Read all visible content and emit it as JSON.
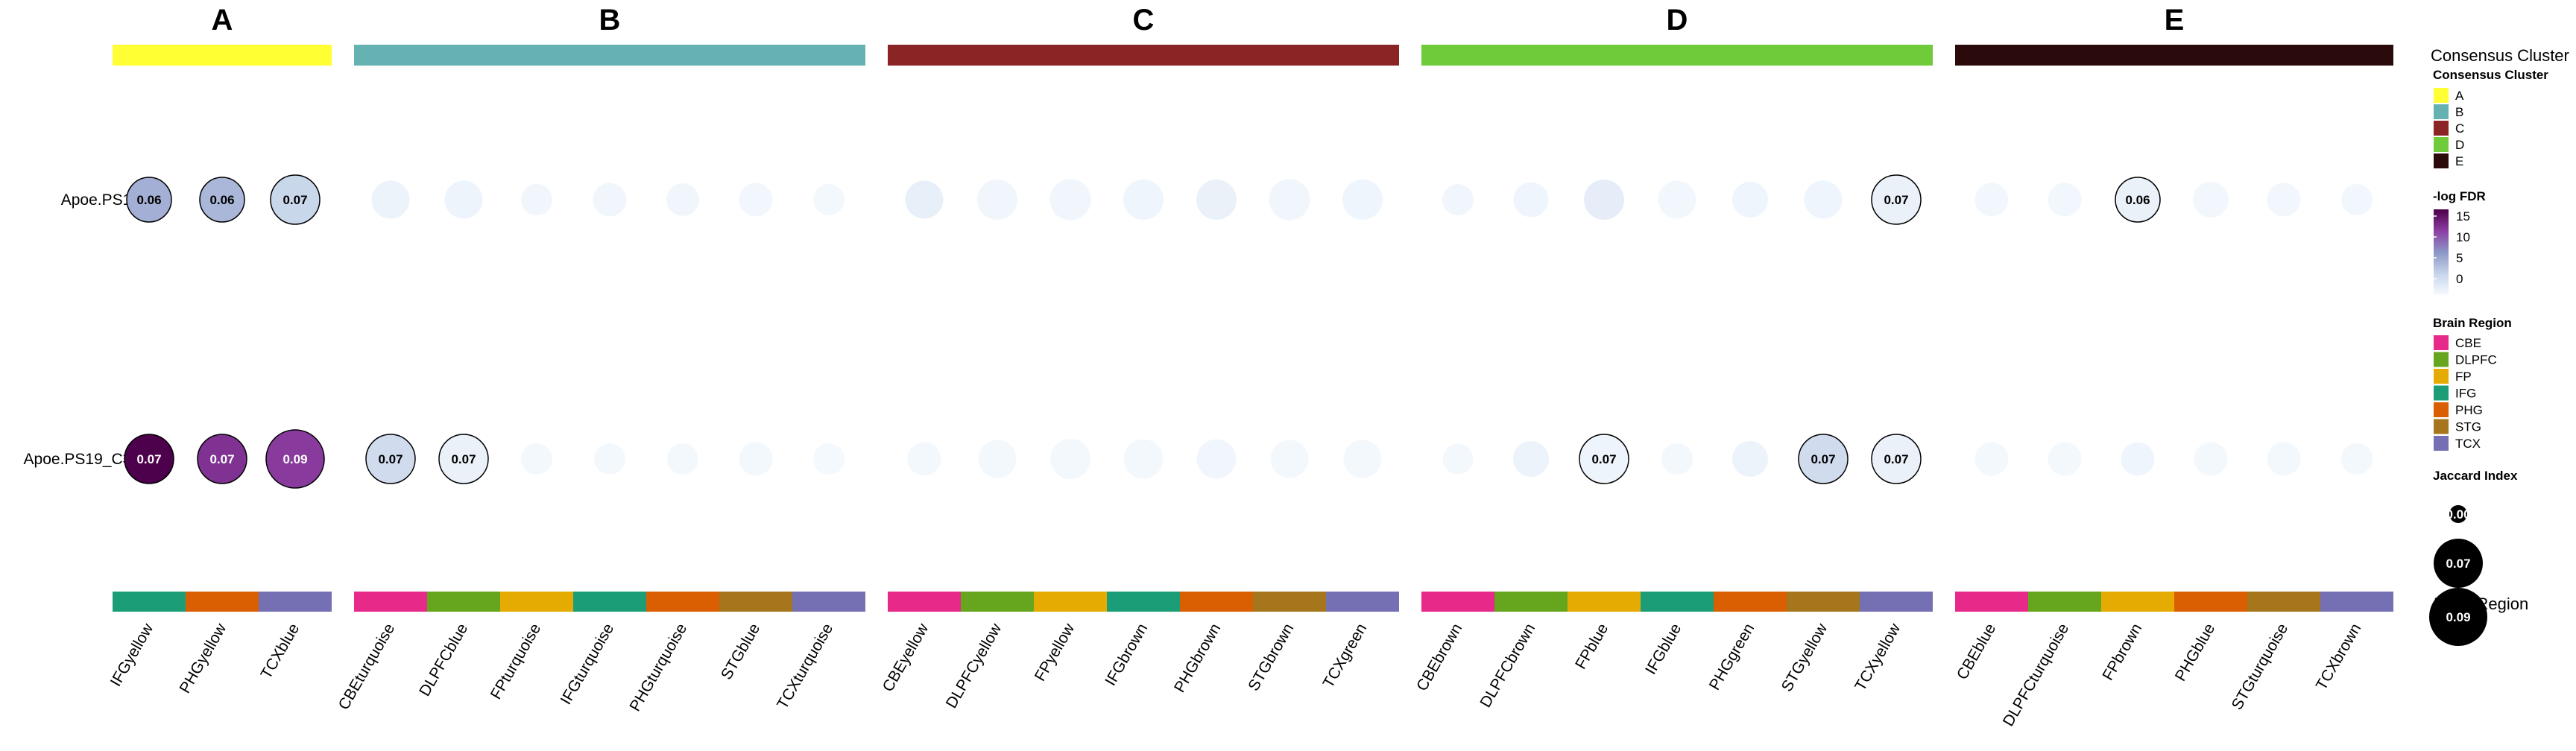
{
  "chart_data": {
    "type": "bubble-heatmap",
    "rows": [
      "Apoe.PS19",
      "Apoe.PS19_C31"
    ],
    "clusters": [
      {
        "name": "A",
        "color": "#FFFF33",
        "columns": [
          {
            "label": "IFGyellow",
            "region": "IFG"
          },
          {
            "label": "PHGyellow",
            "region": "PHG"
          },
          {
            "label": "TCXblue",
            "region": "TCX"
          }
        ]
      },
      {
        "name": "B",
        "color": "#66B2B2",
        "columns": [
          {
            "label": "CBEturquoise",
            "region": "CBE"
          },
          {
            "label": "DLPFCblue",
            "region": "DLPFC"
          },
          {
            "label": "FPturquoise",
            "region": "FP"
          },
          {
            "label": "IFGturquoise",
            "region": "IFG"
          },
          {
            "label": "PHGturquoise",
            "region": "PHG"
          },
          {
            "label": "STGblue",
            "region": "STG"
          },
          {
            "label": "TCXturquoise",
            "region": "TCX"
          }
        ]
      },
      {
        "name": "C",
        "color": "#8B2525",
        "columns": [
          {
            "label": "CBEyellow",
            "region": "CBE"
          },
          {
            "label": "DLPFCyellow",
            "region": "DLPFC"
          },
          {
            "label": "FPyellow",
            "region": "FP"
          },
          {
            "label": "IFGbrown",
            "region": "IFG"
          },
          {
            "label": "PHGbrown",
            "region": "PHG"
          },
          {
            "label": "STGbrown",
            "region": "STG"
          },
          {
            "label": "TCXgreen",
            "region": "TCX"
          }
        ]
      },
      {
        "name": "D",
        "color": "#6FCB3A",
        "columns": [
          {
            "label": "CBEbrown",
            "region": "CBE"
          },
          {
            "label": "DLPFCbrown",
            "region": "DLPFC"
          },
          {
            "label": "FPblue",
            "region": "FP"
          },
          {
            "label": "IFGblue",
            "region": "IFG"
          },
          {
            "label": "PHGgreen",
            "region": "PHG"
          },
          {
            "label": "STGyellow",
            "region": "STG"
          },
          {
            "label": "TCXyellow",
            "region": "TCX"
          }
        ]
      },
      {
        "name": "E",
        "color": "#2B0A0C",
        "columns": [
          {
            "label": "CBEblue",
            "region": "CBE"
          },
          {
            "label": "DLPFCturquoise",
            "region": "DLPFC"
          },
          {
            "label": "FPbrown",
            "region": "FP"
          },
          {
            "label": "PHGblue",
            "region": "PHG"
          },
          {
            "label": "STGturquoise",
            "region": "STG"
          },
          {
            "label": "TCXbrown",
            "region": "TCX"
          }
        ]
      }
    ],
    "cells": [
      [
        {
          "jaccard": 0.06,
          "neglogfdr": 6.0,
          "label": "0.06"
        },
        {
          "jaccard": 0.06,
          "neglogfdr": 5.5,
          "label": "0.06"
        },
        {
          "jaccard": 0.07,
          "neglogfdr": 3.5,
          "label": "0.07"
        },
        {
          "jaccard": 0.045,
          "neglogfdr": 0.8
        },
        {
          "jaccard": 0.045,
          "neglogfdr": 0.7
        },
        {
          "jaccard": 0.03,
          "neglogfdr": 0.5
        },
        {
          "jaccard": 0.035,
          "neglogfdr": 0.5
        },
        {
          "jaccard": 0.033,
          "neglogfdr": 0.5
        },
        {
          "jaccard": 0.035,
          "neglogfdr": 0.4
        },
        {
          "jaccard": 0.03,
          "neglogfdr": 0.3
        },
        {
          "jaccard": 0.045,
          "neglogfdr": 1.2
        },
        {
          "jaccard": 0.05,
          "neglogfdr": 0.5
        },
        {
          "jaccard": 0.052,
          "neglogfdr": 0.5
        },
        {
          "jaccard": 0.05,
          "neglogfdr": 0.6
        },
        {
          "jaccard": 0.05,
          "neglogfdr": 1.0
        },
        {
          "jaccard": 0.052,
          "neglogfdr": 0.5
        },
        {
          "jaccard": 0.05,
          "neglogfdr": 0.6
        },
        {
          "jaccard": 0.03,
          "neglogfdr": 0.5
        },
        {
          "jaccard": 0.038,
          "neglogfdr": 0.6
        },
        {
          "jaccard": 0.05,
          "neglogfdr": 1.3
        },
        {
          "jaccard": 0.045,
          "neglogfdr": 0.4
        },
        {
          "jaccard": 0.04,
          "neglogfdr": 0.6
        },
        {
          "jaccard": 0.045,
          "neglogfdr": 0.6
        },
        {
          "jaccard": 0.07,
          "neglogfdr": 1.0,
          "label": "0.07"
        },
        {
          "jaccard": 0.035,
          "neglogfdr": 0.4
        },
        {
          "jaccard": 0.035,
          "neglogfdr": 0.4
        },
        {
          "jaccard": 0.06,
          "neglogfdr": 1.0,
          "label": "0.06"
        },
        {
          "jaccard": 0.04,
          "neglogfdr": 0.4
        },
        {
          "jaccard": 0.035,
          "neglogfdr": 0.4
        },
        {
          "jaccard": 0.03,
          "neglogfdr": 0.4
        }
      ],
      [
        {
          "jaccard": 0.07,
          "neglogfdr": 15.0,
          "label": "0.07"
        },
        {
          "jaccard": 0.07,
          "neglogfdr": 12.0,
          "label": "0.07"
        },
        {
          "jaccard": 0.09,
          "neglogfdr": 11.5,
          "label": "0.09"
        },
        {
          "jaccard": 0.07,
          "neglogfdr": 3.0,
          "label": "0.07"
        },
        {
          "jaccard": 0.07,
          "neglogfdr": 1.0,
          "label": "0.07"
        },
        {
          "jaccard": 0.03,
          "neglogfdr": 0.3
        },
        {
          "jaccard": 0.03,
          "neglogfdr": 0.3
        },
        {
          "jaccard": 0.03,
          "neglogfdr": 0.3
        },
        {
          "jaccard": 0.035,
          "neglogfdr": 0.3
        },
        {
          "jaccard": 0.03,
          "neglogfdr": 0.2
        },
        {
          "jaccard": 0.035,
          "neglogfdr": 0.3
        },
        {
          "jaccard": 0.045,
          "neglogfdr": 0.3
        },
        {
          "jaccard": 0.05,
          "neglogfdr": 0.3
        },
        {
          "jaccard": 0.048,
          "neglogfdr": 0.3
        },
        {
          "jaccard": 0.048,
          "neglogfdr": 0.5
        },
        {
          "jaccard": 0.045,
          "neglogfdr": 0.3
        },
        {
          "jaccard": 0.045,
          "neglogfdr": 0.3
        },
        {
          "jaccard": 0.028,
          "neglogfdr": 0.3
        },
        {
          "jaccard": 0.04,
          "neglogfdr": 0.8
        },
        {
          "jaccard": 0.07,
          "neglogfdr": 0.7,
          "label": "0.07"
        },
        {
          "jaccard": 0.03,
          "neglogfdr": 0.3
        },
        {
          "jaccard": 0.04,
          "neglogfdr": 0.8
        },
        {
          "jaccard": 0.07,
          "neglogfdr": 3.0,
          "label": "0.07"
        },
        {
          "jaccard": 0.07,
          "neglogfdr": 1.0,
          "label": "0.07"
        },
        {
          "jaccard": 0.035,
          "neglogfdr": 0.3
        },
        {
          "jaccard": 0.035,
          "neglogfdr": 0.3
        },
        {
          "jaccard": 0.035,
          "neglogfdr": 0.6
        },
        {
          "jaccard": 0.035,
          "neglogfdr": 0.3
        },
        {
          "jaccard": 0.035,
          "neglogfdr": 0.3
        },
        {
          "jaccard": 0.03,
          "neglogfdr": 0.3
        }
      ]
    ],
    "color_scale": {
      "title": "-log FDR",
      "min": 0,
      "max": 15,
      "ticks": [
        0,
        5,
        10,
        15
      ],
      "colors": [
        "#F7FBFF",
        "#C6D4EA",
        "#8C96C6",
        "#8C3EA3",
        "#4D004B"
      ]
    },
    "size_scale": {
      "title": "Jaccard Index",
      "values": [
        0.0,
        0.07,
        0.09
      ],
      "labels": [
        "0.00",
        "0.07",
        "0.09"
      ]
    },
    "region_colors": {
      "CBE": "#E7298A",
      "DLPFC": "#66A61E",
      "FP": "#E6AB02",
      "IFG": "#1B9E77",
      "PHG": "#D95F02",
      "STG": "#A6761D",
      "TCX": "#7570B3"
    }
  },
  "legend": {
    "consensus_header": "Consensus Cluster",
    "consensus_title": "Consensus Cluster",
    "consensus_items": [
      "A",
      "B",
      "C",
      "D",
      "E"
    ],
    "fdr_title": "-log FDR",
    "fdr_ticks": [
      "15",
      "10",
      "5",
      "0"
    ],
    "region_title": "Brain Region",
    "region_items": [
      "CBE",
      "DLPFC",
      "FP",
      "IFG",
      "PHG",
      "STG",
      "TCX"
    ],
    "jaccard_title": "Jaccard Index",
    "jaccard_labels": [
      "0.00",
      "0.07",
      "0.09"
    ],
    "region_footer": "Brain Region"
  }
}
